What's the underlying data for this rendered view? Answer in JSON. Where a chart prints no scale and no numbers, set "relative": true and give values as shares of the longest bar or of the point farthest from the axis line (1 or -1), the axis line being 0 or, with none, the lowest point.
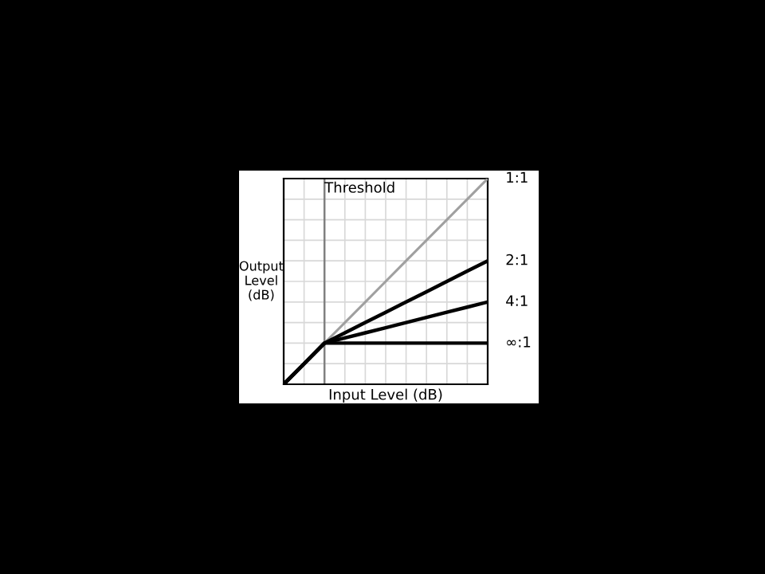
{
  "chart_data": {
    "type": "line",
    "relative": true,
    "xlabel": "Input Level (dB)",
    "ylabel": "Output\nLevel\n(dB)",
    "categories": [
      null,
      null,
      null,
      null,
      null,
      null,
      null,
      null,
      null,
      null,
      null
    ],
    "tick_labels": false,
    "grid": true,
    "marker": "none",
    "line_style": "solid",
    "series": [
      {
        "name": "1:1",
        "color": "#a0a0a0",
        "values": [
          null,
          null,
          0.2,
          0.3,
          0.4,
          0.5,
          0.6,
          0.7,
          0.8,
          0.9,
          1
        ]
      },
      {
        "name": "2:1",
        "color": "#000000",
        "values": [
          0,
          0.1,
          0.2,
          0.25,
          0.3,
          0.35,
          0.4,
          0.45,
          0.5,
          0.55,
          0.6
        ]
      },
      {
        "name": "4:1",
        "color": "#000000",
        "values": [
          0,
          0.1,
          0.2,
          0.225,
          0.25,
          0.275,
          0.3,
          0.325,
          0.35,
          0.375,
          0.4
        ]
      },
      {
        "name": "∞:1",
        "color": "#000000",
        "values": [
          0,
          0.1,
          0.2,
          0.2,
          0.2,
          0.2,
          0.2,
          0.2,
          0.2,
          0.2,
          0.2
        ]
      }
    ],
    "annotations": [
      "Threshold"
    ]
  }
}
